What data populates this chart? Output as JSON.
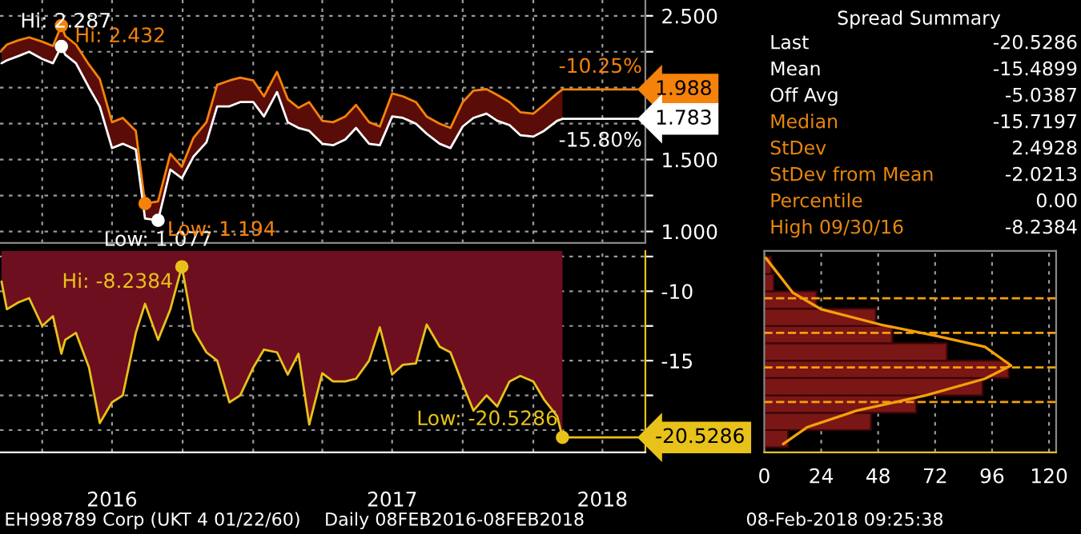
{
  "chart_data": [
    {
      "type": "line",
      "tick_labels": "y",
      "grid": true,
      "x": [
        "2016-02-08",
        "2016-02-15",
        "2016-03-01",
        "2016-03-15",
        "2016-04-01",
        "2016-04-15",
        "2016-04-26",
        "2016-05-01",
        "2016-05-15",
        "2016-06-01",
        "2016-06-15",
        "2016-07-01",
        "2016-07-15",
        "2016-08-01",
        "2016-08-13",
        "2016-08-30",
        "2016-09-15",
        "2016-09-30",
        "2016-10-15",
        "2016-11-01",
        "2016-11-15",
        "2016-12-01",
        "2016-12-15",
        "2017-01-01",
        "2017-01-15",
        "2017-02-01",
        "2017-02-15",
        "2017-03-01",
        "2017-03-15",
        "2017-04-01",
        "2017-04-15",
        "2017-05-01",
        "2017-05-15",
        "2017-06-01",
        "2017-06-15",
        "2017-07-01",
        "2017-07-15",
        "2017-08-01",
        "2017-08-15",
        "2017-09-01",
        "2017-09-15",
        "2017-10-01",
        "2017-10-15",
        "2017-11-01",
        "2017-11-15",
        "2017-12-01",
        "2017-12-15",
        "2018-01-01",
        "2018-01-15",
        "2018-02-01",
        "2018-02-08"
      ],
      "series": [
        {
          "color": "#f5820a",
          "values": [
            2.26,
            2.3,
            2.33,
            2.35,
            2.32,
            2.29,
            2.432,
            2.36,
            2.3,
            2.16,
            2.06,
            1.76,
            1.79,
            1.7,
            1.194,
            1.21,
            1.54,
            1.45,
            1.65,
            1.76,
            2.02,
            2.05,
            2.07,
            2.05,
            1.94,
            2.11,
            1.92,
            1.86,
            1.9,
            1.77,
            1.76,
            1.8,
            1.88,
            1.76,
            1.73,
            1.96,
            1.94,
            1.9,
            1.8,
            1.75,
            1.72,
            1.9,
            1.98,
            1.99,
            1.95,
            1.9,
            1.83,
            1.82,
            1.88,
            1.96,
            1.988
          ],
          "lower": [
            2.17,
            2.19,
            2.22,
            2.25,
            2.2,
            2.17,
            2.287,
            2.23,
            2.17,
            2.0,
            1.87,
            1.58,
            1.61,
            1.57,
            1.09,
            1.077,
            1.43,
            1.37,
            1.52,
            1.62,
            1.87,
            1.87,
            1.9,
            1.9,
            1.8,
            1.97,
            1.76,
            1.72,
            1.7,
            1.61,
            1.6,
            1.64,
            1.72,
            1.61,
            1.6,
            1.8,
            1.79,
            1.75,
            1.68,
            1.61,
            1.58,
            1.73,
            1.79,
            1.82,
            1.77,
            1.74,
            1.67,
            1.66,
            1.7,
            1.77,
            1.783
          ],
          "upper": [
            2.26,
            2.3,
            2.33,
            2.35,
            2.32,
            2.29,
            2.432,
            2.36,
            2.3,
            2.16,
            2.06,
            1.76,
            1.79,
            1.7,
            1.194,
            1.21,
            1.54,
            1.45,
            1.65,
            1.76,
            2.02,
            2.05,
            2.07,
            2.05,
            1.94,
            2.11,
            1.92,
            1.86,
            1.9,
            1.77,
            1.76,
            1.8,
            1.88,
            1.76,
            1.73,
            1.96,
            1.94,
            1.9,
            1.8,
            1.75,
            1.72,
            1.9,
            1.98,
            1.99,
            1.95,
            1.9,
            1.83,
            1.82,
            1.88,
            1.96,
            1.988
          ]
        },
        {
          "color": "#ffffff",
          "values": [
            2.17,
            2.19,
            2.22,
            2.25,
            2.2,
            2.17,
            2.287,
            2.23,
            2.17,
            2.0,
            1.87,
            1.58,
            1.61,
            1.57,
            1.09,
            1.077,
            1.43,
            1.37,
            1.52,
            1.62,
            1.87,
            1.87,
            1.9,
            1.9,
            1.8,
            1.97,
            1.76,
            1.72,
            1.7,
            1.61,
            1.6,
            1.64,
            1.72,
            1.61,
            1.6,
            1.8,
            1.79,
            1.75,
            1.68,
            1.61,
            1.58,
            1.73,
            1.79,
            1.82,
            1.77,
            1.74,
            1.67,
            1.66,
            1.7,
            1.77,
            1.783
          ]
        }
      ],
      "xlim": [
        "2016-02-06",
        "2018-05-27"
      ],
      "xticks": [
        {
          "value": "2016-04-01",
          "label": null
        },
        {
          "value": "2016-07-01",
          "label": null
        },
        {
          "value": "2016-10-01",
          "label": null
        },
        {
          "value": "2017-01-01",
          "label": null
        },
        {
          "value": "2017-04-01",
          "label": null
        },
        {
          "value": "2017-07-01",
          "label": null
        },
        {
          "value": "2017-10-01",
          "label": null
        },
        {
          "value": "2018-01-01",
          "label": null
        },
        {
          "value": "2018-04-01",
          "label": null
        }
      ],
      "ylim": [
        0.92,
        2.61
      ],
      "yticks": [
        {
          "value": 1.0,
          "label": "1.000"
        },
        {
          "value": 1.25,
          "label": null
        },
        {
          "value": 1.5,
          "label": "1.500"
        },
        {
          "value": 1.75,
          "label": null
        },
        {
          "value": 2.0,
          "label": null
        },
        {
          "value": 2.25,
          "label": null
        },
        {
          "value": 2.5,
          "label": "2.500"
        }
      ],
      "annotations": [
        {
          "text": "Hi: 2.287",
          "x": "2016-04-26",
          "y": 2.287
        },
        {
          "text": "Hi: 2.432",
          "x": "2016-04-26",
          "y": 2.432
        },
        {
          "text": "Low: 1.077",
          "x": "2016-08-30",
          "y": 1.077
        },
        {
          "text": "Low: 1.194",
          "x": "2016-08-13",
          "y": 1.194
        },
        {
          "text": "-10.25%",
          "x": "2018-02-08",
          "y": 1.988
        },
        {
          "text": "-15.80%",
          "x": "2018-02-08",
          "y": 1.783
        },
        {
          "text": "1.988",
          "x": "2018-02-08",
          "y": 1.988
        },
        {
          "text": "1.783",
          "x": "2018-02-08",
          "y": 1.783
        }
      ]
    },
    {
      "type": "other",
      "title": "Spread Summary",
      "categories": [
        "Last",
        "Mean",
        "Off Avg",
        "Median",
        "StDev",
        "StDev from Mean",
        "Percentile",
        "High 09/30/16"
      ],
      "value_labels": [
        "-20.5286",
        "-15.4899",
        "-5.0387",
        "-15.7197",
        "2.4928",
        "-2.0213",
        "0.00",
        "-8.2384"
      ],
      "colors": [
        "#ffffff",
        "#ffffff",
        "#ffffff",
        "#e8860c",
        "#e8860c",
        "#e8860c",
        "#e8860c",
        "#e8860c"
      ],
      "annotations": [
        "EH998789 Corp (UKT 4 01/22/60)",
        "Daily 08FEB2016-08FEB2018",
        "08-Feb-2018 09:25:38"
      ]
    },
    {
      "type": "area",
      "grid": true,
      "x": [
        "2016-02-08",
        "2016-02-15",
        "2016-03-01",
        "2016-03-15",
        "2016-04-01",
        "2016-04-15",
        "2016-04-26",
        "2016-05-01",
        "2016-05-15",
        "2016-06-01",
        "2016-06-15",
        "2016-07-01",
        "2016-07-15",
        "2016-08-01",
        "2016-08-13",
        "2016-08-30",
        "2016-09-15",
        "2016-09-30",
        "2016-10-15",
        "2016-11-01",
        "2016-11-15",
        "2016-12-01",
        "2016-12-15",
        "2017-01-01",
        "2017-01-15",
        "2017-02-01",
        "2017-02-15",
        "2017-03-01",
        "2017-03-15",
        "2017-04-01",
        "2017-04-15",
        "2017-05-01",
        "2017-05-15",
        "2017-06-01",
        "2017-06-15",
        "2017-07-01",
        "2017-07-15",
        "2017-08-01",
        "2017-08-15",
        "2017-09-01",
        "2017-09-15",
        "2017-10-01",
        "2017-10-15",
        "2017-11-01",
        "2017-11-15",
        "2017-12-01",
        "2017-12-15",
        "2018-01-01",
        "2018-01-15",
        "2018-02-01",
        "2018-02-08"
      ],
      "series": [
        {
          "color": "#e8c21a",
          "values": [
            -9.3,
            -11.3,
            -10.8,
            -10.5,
            -12.5,
            -11.8,
            -14.5,
            -13.5,
            -13.0,
            -15.5,
            -19.5,
            -18.0,
            -17.5,
            -13.0,
            -10.9,
            -13.5,
            -11.3,
            -8.2384,
            -12.8,
            -14.4,
            -15.0,
            -18.0,
            -17.5,
            -15.5,
            -14.2,
            -14.4,
            -16.0,
            -14.5,
            -19.6,
            -15.9,
            -16.5,
            -16.5,
            -16.3,
            -15.0,
            -12.6,
            -16.0,
            -15.3,
            -15.2,
            -12.4,
            -14.0,
            -14.4,
            -16.7,
            -18.6,
            -17.5,
            -18.3,
            -16.5,
            -16.1,
            -16.5,
            -17.8,
            -19.0,
            -20.5286
          ]
        }
      ],
      "xlim": [
        "2016-02-06",
        "2018-05-27"
      ],
      "xticks": [
        {
          "value": "2016-04-01",
          "label": null
        },
        {
          "value": "2016-07-01",
          "label": "2016"
        },
        {
          "value": "2016-10-01",
          "label": null
        },
        {
          "value": "2017-01-01",
          "label": null
        },
        {
          "value": "2017-04-01",
          "label": null
        },
        {
          "value": "2017-07-01",
          "label": "2017"
        },
        {
          "value": "2017-10-01",
          "label": null
        },
        {
          "value": "2018-01-01",
          "label": null
        },
        {
          "value": "2018-04-01",
          "label": "2018"
        }
      ],
      "ylim": [
        -21.6,
        -7.1
      ],
      "yticks": [
        {
          "value": -20,
          "label": null
        },
        {
          "value": -17.5,
          "label": null
        },
        -15,
        {
          "value": -12.5,
          "label": null
        },
        -10,
        {
          "value": -7.5,
          "label": null
        }
      ],
      "annotations": [
        {
          "text": "Hi: -8.2384",
          "x": "2016-09-30",
          "y": -8.2384
        },
        {
          "text": "Low: -20.5286",
          "x": "2018-02-08",
          "y": -20.5286
        },
        "-20.5286"
      ]
    },
    {
      "type": "histogram",
      "orientation": "horizontal",
      "color": "#7a1616",
      "grid": "x",
      "tick_labels": "x",
      "bins": [
        -21.25,
        -20,
        -18.75,
        -17.5,
        -16.25,
        -15,
        -13.75,
        -12.5,
        -11.25,
        -10,
        -8.75,
        -7.5
      ],
      "values": [
        10,
        45,
        64,
        92,
        103,
        77,
        54,
        47,
        22,
        4,
        3
      ],
      "series": [
        {
          "type": "line",
          "color": "#f5a00a",
          "x": [
            -21.0,
            -19.8,
            -18.6,
            -17.5,
            -16.3,
            -15.35,
            -14.0,
            -13.2,
            -12.4,
            -11.3,
            -10.1,
            -7.6
          ],
          "values": [
            8,
            18,
            39,
            68,
            93,
            104,
            93,
            72,
            49,
            24,
            12,
            0.6
          ]
        }
      ],
      "ref_lines": [
        {
          "axis": "y",
          "value": -15.4899,
          "color": "#f5a00a",
          "line_style": "dashed"
        },
        {
          "axis": "y",
          "value": -12.9971,
          "color": "#f5a00a",
          "line_style": "dashed"
        },
        {
          "axis": "y",
          "value": -17.9827,
          "color": "#f5a00a",
          "line_style": "dashed"
        },
        {
          "axis": "y",
          "value": -10.5043,
          "color": "#f5a00a",
          "line_style": "dashed"
        }
      ],
      "xlim": [
        0,
        123
      ],
      "xticks": [
        0,
        24,
        48,
        72,
        96,
        120
      ],
      "ylim": [
        -21.6,
        -7.1
      ]
    }
  ]
}
